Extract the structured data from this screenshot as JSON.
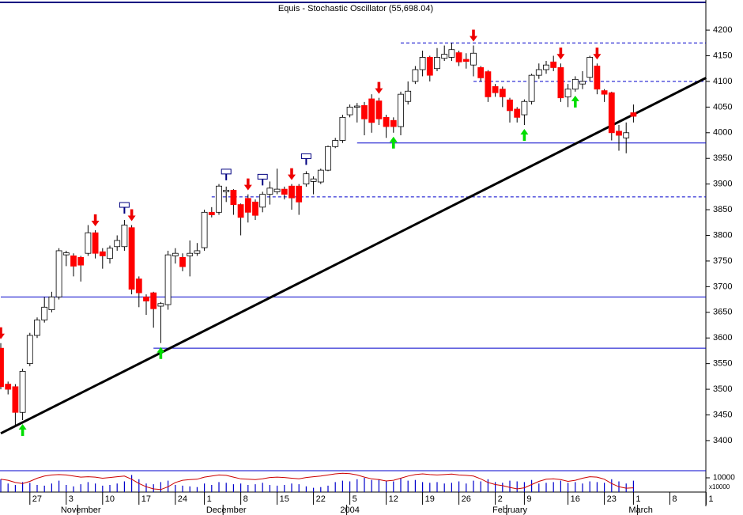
{
  "chart_data": {
    "type": "candlestick",
    "title": "Equis - Stochastic Oscillator (55,698.04)",
    "open": [
      3580,
      3510,
      3505,
      3455,
      3550,
      3605,
      3635,
      3655,
      3680,
      3762,
      3760,
      3757,
      3765,
      3805,
      3768,
      3755,
      3778,
      3778,
      3815,
      3715,
      3680,
      3688,
      3662,
      3665,
      3760,
      3757,
      3760,
      3765,
      3776,
      3845,
      3845,
      3885,
      3888,
      3860,
      3872,
      3865,
      3855,
      3880,
      3885,
      3890,
      3896,
      3896,
      3900,
      3905,
      3904,
      3927,
      3973,
      3985,
      4035,
      4050,
      4053,
      4066,
      4062,
      4030,
      4024,
      4012,
      4061,
      4100,
      4123,
      4147,
      4125,
      4145,
      4147,
      4156,
      4143,
      4132,
      4127,
      4119,
      4090,
      4085,
      4064,
      4046,
      4035,
      4061,
      4112,
      4123,
      4138,
      4127,
      4070,
      4085,
      4095,
      4108,
      4130,
      4082,
      4078,
      4003,
      3990,
      4039
    ],
    "high": [
      3590,
      3515,
      3510,
      3540,
      3610,
      3640,
      3680,
      3690,
      3775,
      3770,
      3765,
      3760,
      3820,
      3810,
      3775,
      3780,
      3800,
      3830,
      3820,
      3720,
      3685,
      3690,
      3670,
      3770,
      3775,
      3765,
      3790,
      3785,
      3850,
      3855,
      3900,
      3895,
      3890,
      3862,
      3880,
      3870,
      3885,
      3905,
      3930,
      3895,
      3900,
      3900,
      3925,
      3915,
      3930,
      3975,
      3990,
      4035,
      4055,
      4058,
      4060,
      4075,
      4068,
      4035,
      4030,
      4080,
      4100,
      4130,
      4160,
      4150,
      4165,
      4170,
      4175,
      4160,
      4155,
      4170,
      4130,
      4122,
      4095,
      4090,
      4068,
      4050,
      4065,
      4115,
      4135,
      4140,
      4150,
      4135,
      4095,
      4110,
      4120,
      4150,
      4135,
      4085,
      4080,
      4015,
      4020,
      4055
    ],
    "low": [
      3500,
      3490,
      3430,
      3440,
      3545,
      3600,
      3630,
      3650,
      3675,
      3740,
      3720,
      3710,
      3760,
      3755,
      3735,
      3745,
      3770,
      3770,
      3685,
      3660,
      3645,
      3620,
      3590,
      3655,
      3745,
      3730,
      3720,
      3760,
      3770,
      3835,
      3840,
      3865,
      3840,
      3800,
      3825,
      3830,
      3845,
      3860,
      3880,
      3870,
      3850,
      3840,
      3895,
      3880,
      3900,
      3925,
      3970,
      3980,
      4030,
      4020,
      3995,
      4000,
      4015,
      3990,
      4000,
      3995,
      4055,
      4095,
      4110,
      4100,
      4120,
      4140,
      4140,
      4130,
      4125,
      4110,
      4100,
      4060,
      4070,
      4050,
      4020,
      4020,
      4015,
      4055,
      4105,
      4115,
      4120,
      4060,
      4050,
      4080,
      4085,
      4100,
      4075,
      4060,
      3985,
      3965,
      3960,
      4020
    ],
    "close": [
      3505,
      3500,
      3455,
      3535,
      3605,
      3635,
      3660,
      3680,
      3770,
      3766,
      3740,
      3742,
      3805,
      3765,
      3760,
      3775,
      3790,
      3820,
      3695,
      3688,
      3672,
      3657,
      3667,
      3762,
      3765,
      3739,
      3765,
      3770,
      3845,
      3840,
      3896,
      3888,
      3860,
      3835,
      3845,
      3839,
      3880,
      3892,
      3890,
      3880,
      3873,
      3865,
      3920,
      3910,
      3927,
      3973,
      3985,
      4030,
      4050,
      4052,
      4027,
      4020,
      4027,
      4012,
      4012,
      4075,
      4081,
      4123,
      4147,
      4112,
      4147,
      4153,
      4162,
      4138,
      4139,
      4155,
      4107,
      4070,
      4078,
      4070,
      4043,
      4030,
      4061,
      4112,
      4123,
      4132,
      4127,
      4068,
      4085,
      4104,
      4100,
      4147,
      4085,
      4075,
      4000,
      3995,
      4000,
      4032
    ],
    "up_color": "#ffffff",
    "down_color": "#ff0000",
    "volume": [
      9000,
      6000,
      5000,
      7000,
      6500,
      5000,
      4500,
      6000,
      8000,
      5000,
      4000,
      5500,
      7000,
      6000,
      4500,
      5000,
      6000,
      7500,
      12000,
      9000,
      6000,
      5500,
      7000,
      8000,
      5000,
      4500,
      4000,
      3500,
      6000,
      5000,
      7000,
      6500,
      5500,
      6000,
      5000,
      5500,
      6500,
      5000,
      4500,
      5000,
      6000,
      5500,
      4000,
      3000,
      3500,
      4500,
      7000,
      8000,
      7500,
      9000,
      10000,
      8500,
      9000,
      8000,
      7500,
      9500,
      8000,
      8500,
      7000,
      6500,
      7000,
      6000,
      6500,
      7500,
      6000,
      8000,
      7500,
      9000,
      7000,
      6500,
      8000,
      7500,
      7000,
      8500,
      6000,
      6500,
      7000,
      8000,
      6500,
      7000,
      6000,
      7500,
      7000,
      6500,
      9000,
      7500,
      6000,
      8000
    ],
    "volume_color": "#0000cc",
    "volume_lim": [
      0,
      15000
    ],
    "volume_ticks": [
      10000
    ],
    "volume_unit": "x10000",
    "oscillator": [
      60,
      55,
      45,
      40,
      50,
      65,
      75,
      80,
      82,
      80,
      75,
      70,
      72,
      70,
      65,
      68,
      72,
      75,
      60,
      40,
      25,
      15,
      12,
      25,
      45,
      55,
      58,
      60,
      70,
      75,
      80,
      78,
      70,
      62,
      60,
      58,
      62,
      68,
      70,
      68,
      65,
      62,
      68,
      72,
      75,
      80,
      85,
      88,
      86,
      80,
      70,
      62,
      58,
      52,
      55,
      65,
      75,
      82,
      85,
      82,
      80,
      82,
      84,
      80,
      78,
      75,
      62,
      45,
      35,
      30,
      22,
      15,
      20,
      35,
      50,
      60,
      62,
      58,
      50,
      55,
      65,
      72,
      70,
      60,
      40,
      25,
      18,
      20
    ],
    "oscillator_color": "#cc0000",
    "oscillator_lim": [
      0,
      100
    ],
    "ylim": [
      3349,
      4251
    ],
    "yticks": [
      3400,
      3450,
      3500,
      3550,
      3600,
      3650,
      3700,
      3750,
      3800,
      3850,
      3900,
      3950,
      4000,
      4050,
      4100,
      4150,
      4200
    ],
    "xlim": [
      0,
      97
    ],
    "xticks": [
      {
        "value": 4,
        "label": "27"
      },
      {
        "value": 9,
        "label": "3"
      },
      {
        "value": 14,
        "label": "10"
      },
      {
        "value": 19,
        "label": "17"
      },
      {
        "value": 24,
        "label": "24"
      },
      {
        "value": 28,
        "label": "1"
      },
      {
        "value": 33,
        "label": "8"
      },
      {
        "value": 38,
        "label": "15"
      },
      {
        "value": 43,
        "label": "22"
      },
      {
        "value": 48,
        "label": "5"
      },
      {
        "value": 53,
        "label": "12"
      },
      {
        "value": 58,
        "label": "19"
      },
      {
        "value": 63,
        "label": "26"
      },
      {
        "value": 68,
        "label": "2"
      },
      {
        "value": 72,
        "label": "9"
      },
      {
        "value": 78,
        "label": "16"
      },
      {
        "value": 83,
        "label": "23"
      },
      {
        "value": 87,
        "label": "1"
      },
      {
        "value": 92,
        "label": "8"
      },
      {
        "value": 97,
        "label": "1"
      }
    ],
    "month_ticks": [
      {
        "value": 11,
        "label": "November"
      },
      {
        "value": 31,
        "label": "December"
      },
      {
        "value": 48,
        "label": "2004"
      },
      {
        "value": 70,
        "label": "February"
      },
      {
        "value": 88,
        "label": "March"
      }
    ],
    "hlines": [
      {
        "value": 3680,
        "from": 0,
        "style": "solid"
      },
      {
        "value": 3580,
        "from": 21,
        "style": "solid"
      },
      {
        "value": 3980,
        "from": 49,
        "style": "solid"
      },
      {
        "value": 4175,
        "from": 55,
        "style": "dashed"
      },
      {
        "value": 4100,
        "from": 65,
        "style": "dashed"
      },
      {
        "value": 3875,
        "from": 29,
        "style": "dashed"
      }
    ],
    "hline_color": "#0000cc",
    "trendline": [
      [
        0,
        3414
      ],
      [
        97,
        4107
      ]
    ],
    "signals": [
      {
        "at": 0,
        "dir": "down"
      },
      {
        "at": 13,
        "dir": "down"
      },
      {
        "at": 18,
        "dir": "down"
      },
      {
        "at": 34,
        "dir": "down"
      },
      {
        "at": 40,
        "dir": "down"
      },
      {
        "at": 52,
        "dir": "down"
      },
      {
        "at": 65,
        "dir": "down"
      },
      {
        "at": 77,
        "dir": "down"
      },
      {
        "at": 82,
        "dir": "down"
      },
      {
        "at": 3,
        "dir": "up"
      },
      {
        "at": 22,
        "dir": "up"
      },
      {
        "at": 54,
        "dir": "up"
      },
      {
        "at": 72,
        "dir": "up"
      },
      {
        "at": 79,
        "dir": "up"
      }
    ],
    "exit_signals": [
      17,
      31,
      36,
      42
    ]
  }
}
